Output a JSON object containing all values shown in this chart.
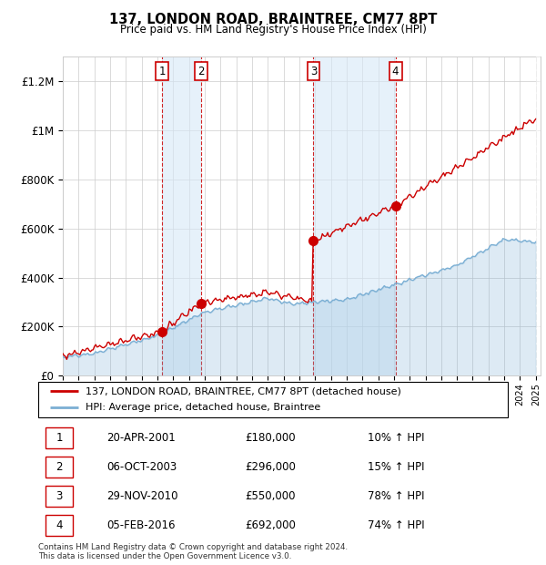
{
  "title": "137, LONDON ROAD, BRAINTREE, CM77 8PT",
  "subtitle": "Price paid vs. HM Land Registry's House Price Index (HPI)",
  "ylim": [
    0,
    1300000
  ],
  "yticks": [
    0,
    200000,
    400000,
    600000,
    800000,
    1000000,
    1200000
  ],
  "ytick_labels": [
    "£0",
    "£200K",
    "£400K",
    "£600K",
    "£800K",
    "£1M",
    "£1.2M"
  ],
  "sale_color": "#cc0000",
  "hpi_color": "#7bafd4",
  "hpi_fill_alpha": 0.25,
  "transactions": [
    {
      "label": "1",
      "date": "20-APR-2001",
      "year": 2001.3,
      "price": 180000
    },
    {
      "label": "2",
      "date": "06-OCT-2003",
      "year": 2003.77,
      "price": 296000
    },
    {
      "label": "3",
      "date": "29-NOV-2010",
      "year": 2010.9,
      "price": 550000
    },
    {
      "label": "4",
      "date": "05-FEB-2016",
      "year": 2016.1,
      "price": 692000
    }
  ],
  "legend_line1": "137, LONDON ROAD, BRAINTREE, CM77 8PT (detached house)",
  "legend_line2": "HPI: Average price, detached house, Braintree",
  "footnote": "Contains HM Land Registry data © Crown copyright and database right 2024.\nThis data is licensed under the Open Government Licence v3.0.",
  "table_rows": [
    [
      "1",
      "20-APR-2001",
      "£180,000",
      "10% ↑ HPI"
    ],
    [
      "2",
      "06-OCT-2003",
      "£296,000",
      "15% ↑ HPI"
    ],
    [
      "3",
      "29-NOV-2010",
      "£550,000",
      "78% ↑ HPI"
    ],
    [
      "4",
      "05-FEB-2016",
      "£692,000",
      "74% ↑ HPI"
    ]
  ]
}
